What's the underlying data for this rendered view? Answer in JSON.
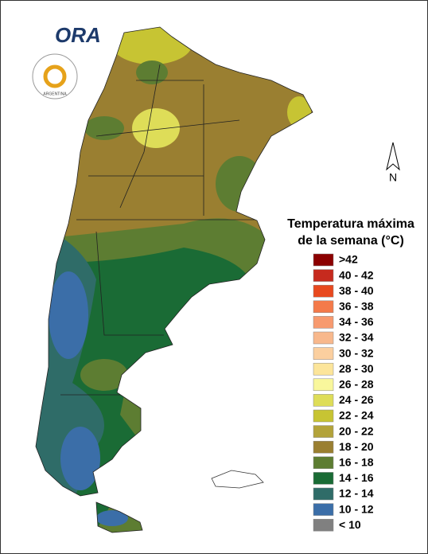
{
  "logo": {
    "name": "ORA",
    "seal": "ARGENTINA"
  },
  "north": "N",
  "legend": {
    "title": [
      "Temperatura máxima",
      "de la semana (°C)"
    ],
    "items": [
      {
        "label": ">42",
        "color": "#8b0000"
      },
      {
        "label": "40 - 42",
        "color": "#c62a1e"
      },
      {
        "label": "38 - 40",
        "color": "#e8491e"
      },
      {
        "label": "36 - 38",
        "color": "#f47a4a"
      },
      {
        "label": "34 - 36",
        "color": "#f79a6f"
      },
      {
        "label": "32 - 34",
        "color": "#f8b88c"
      },
      {
        "label": "30 - 32",
        "color": "#fbcf9f"
      },
      {
        "label": "28 - 30",
        "color": "#fce59a"
      },
      {
        "label": "26 - 28",
        "color": "#f9f79c"
      },
      {
        "label": "24 - 26",
        "color": "#dedd58"
      },
      {
        "label": "22 - 24",
        "color": "#c7c433"
      },
      {
        "label": "20 - 22",
        "color": "#b3a33a"
      },
      {
        "label": "18 - 20",
        "color": "#9a7f31"
      },
      {
        "label": "16 - 18",
        "color": "#5d7d32"
      },
      {
        "label": "14 - 16",
        "color": "#1a6b35"
      },
      {
        "label": "12 - 14",
        "color": "#2f6c68"
      },
      {
        "label": "10 - 12",
        "color": "#3b6ea8"
      },
      {
        "label": "< 10",
        "color": "#808080"
      }
    ]
  }
}
